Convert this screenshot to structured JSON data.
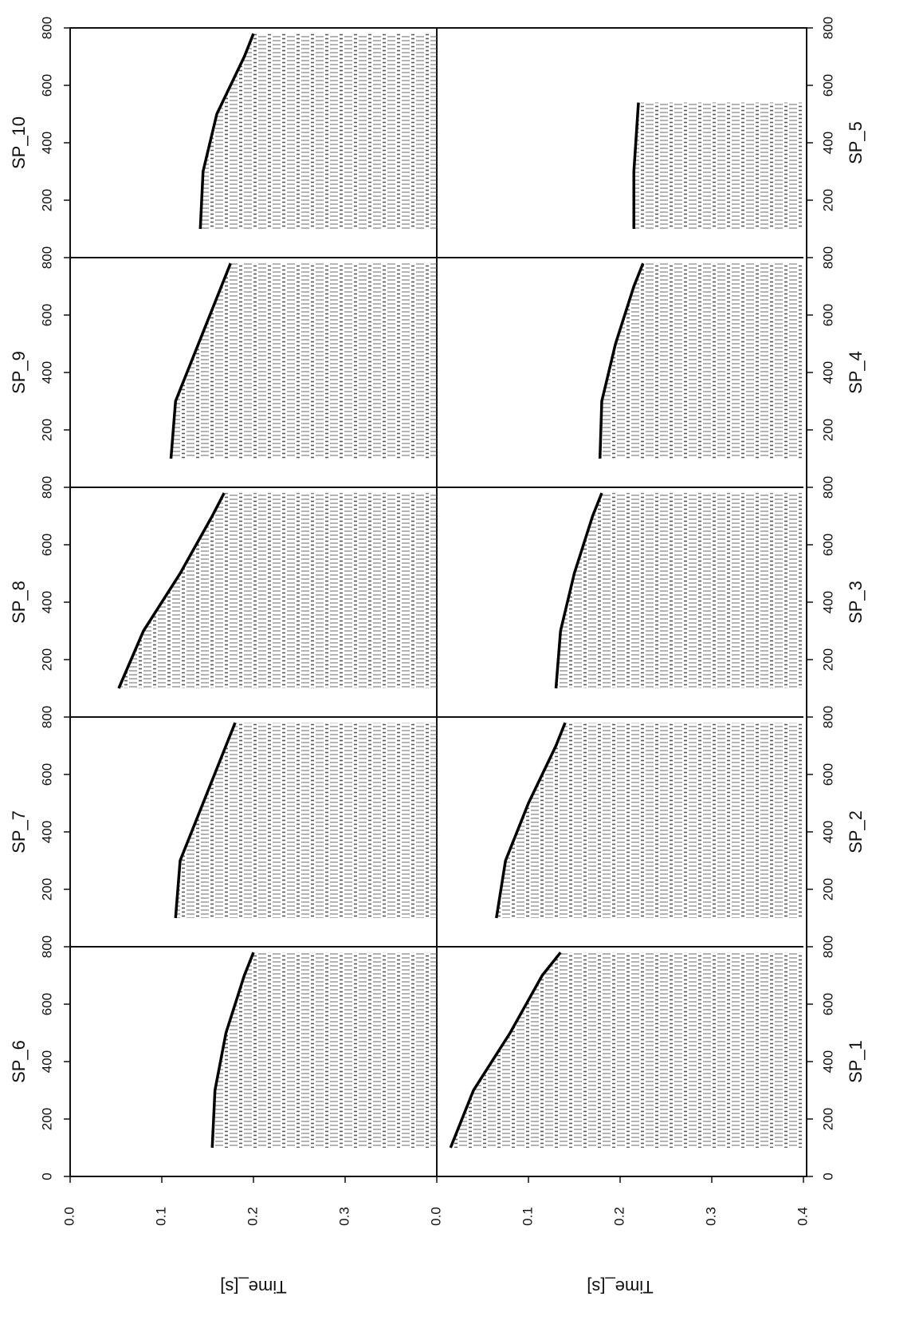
{
  "chart_data": [
    {
      "type": "line",
      "title": "SP_6",
      "x": [
        100,
        300,
        500,
        700,
        780
      ],
      "values": [
        0.155,
        0.158,
        0.17,
        0.19,
        0.2
      ],
      "xlim": [
        0,
        800
      ],
      "xticks": [
        0,
        200,
        400,
        600,
        800
      ],
      "ylim": [
        0,
        0.4
      ],
      "yticks": [
        {
          "value": 0,
          "label": "0.0"
        },
        0.1,
        0.2,
        0.3
      ],
      "y_label": "Time_[s]"
    },
    {
      "type": "line",
      "title": "SP_7",
      "x": [
        100,
        300,
        500,
        700,
        780
      ],
      "values": [
        0.115,
        0.12,
        0.145,
        0.17,
        0.18
      ],
      "xlim": [
        0,
        800
      ],
      "xticks": [
        200,
        400,
        600,
        800
      ],
      "ylim": [
        0,
        0.4
      ]
    },
    {
      "type": "line",
      "title": "SP_8",
      "x": [
        100,
        300,
        500,
        700,
        780
      ],
      "values": [
        0.053,
        0.08,
        0.12,
        0.155,
        0.168
      ],
      "xlim": [
        0,
        800
      ],
      "xticks": [
        200,
        400,
        600,
        800
      ],
      "ylim": [
        0,
        0.4
      ]
    },
    {
      "type": "line",
      "title": "SP_9",
      "x": [
        100,
        300,
        500,
        700,
        780
      ],
      "values": [
        0.11,
        0.115,
        0.14,
        0.165,
        0.175
      ],
      "xlim": [
        0,
        800
      ],
      "xticks": [
        200,
        400,
        600,
        800
      ],
      "ylim": [
        0,
        0.4
      ]
    },
    {
      "type": "line",
      "title": "SP_10",
      "x": [
        100,
        300,
        500,
        700,
        780
      ],
      "values": [
        0.142,
        0.145,
        0.16,
        0.19,
        0.2
      ],
      "xlim": [
        0,
        800
      ],
      "xticks": [
        200,
        400,
        600,
        800
      ],
      "ylim": [
        0,
        0.4
      ]
    },
    {
      "type": "line",
      "title": "SP_1",
      "x": [
        100,
        300,
        500,
        700,
        780
      ],
      "values": [
        0.015,
        0.04,
        0.08,
        0.115,
        0.135
      ],
      "xlim": [
        0,
        800
      ],
      "xticks": [
        0,
        200,
        400,
        600,
        800
      ],
      "ylim": [
        0,
        0.4
      ],
      "yticks": [
        {
          "value": 0,
          "label": "0.0"
        },
        0.1,
        0.2,
        0.3,
        0.4
      ],
      "y_label": "Time_[s]"
    },
    {
      "type": "line",
      "title": "SP_2",
      "x": [
        100,
        300,
        500,
        700,
        780
      ],
      "values": [
        0.065,
        0.075,
        0.1,
        0.13,
        0.14
      ],
      "xlim": [
        0,
        800
      ],
      "xticks": [
        200,
        400,
        600,
        800
      ],
      "ylim": [
        0,
        0.4
      ]
    },
    {
      "type": "line",
      "title": "SP_3",
      "x": [
        100,
        300,
        500,
        700,
        780
      ],
      "values": [
        0.13,
        0.135,
        0.15,
        0.17,
        0.18
      ],
      "xlim": [
        0,
        800
      ],
      "xticks": [
        200,
        400,
        600,
        800
      ],
      "ylim": [
        0,
        0.4
      ]
    },
    {
      "type": "line",
      "title": "SP_4",
      "x": [
        100,
        300,
        500,
        700,
        780
      ],
      "values": [
        0.178,
        0.18,
        0.195,
        0.215,
        0.225
      ],
      "xlim": [
        0,
        800
      ],
      "xticks": [
        200,
        400,
        600,
        800
      ],
      "ylim": [
        0,
        0.4
      ]
    },
    {
      "type": "line",
      "title": "SP_5",
      "x": [
        100,
        300,
        540
      ],
      "values": [
        0.215,
        0.215,
        0.22
      ],
      "xlim": [
        0,
        800
      ],
      "xticks": [
        200,
        400,
        600,
        800
      ],
      "ylim": [
        0,
        0.4
      ]
    }
  ]
}
